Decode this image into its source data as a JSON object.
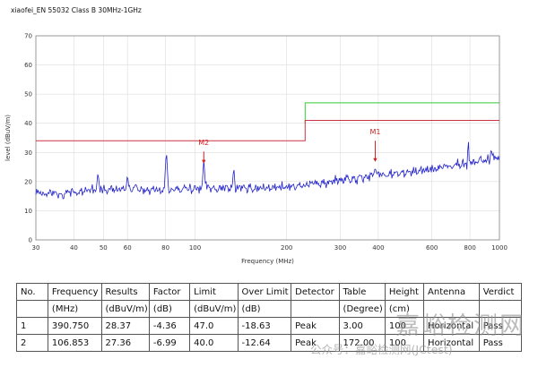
{
  "chart_data": {
    "type": "line",
    "title": "xiaofei_EN 55032 Class B 30MHz-1GHz",
    "xlabel": "Frequency (MHz)",
    "ylabel": "level (dBuV/m)",
    "xscale": "log",
    "xlim": [
      30,
      1000
    ],
    "ylim": [
      0,
      70
    ],
    "xticks": [
      30,
      40,
      50,
      60,
      80,
      100,
      200,
      300,
      400,
      600,
      800,
      1000
    ],
    "yticks": [
      0,
      10,
      20,
      30,
      40,
      50,
      60,
      70
    ],
    "grid": true,
    "legend": "none",
    "colors": {
      "trace": "#2222cc",
      "grid": "#dcdcdc",
      "axis": "#808080",
      "marker": "#cc2222"
    },
    "series": [
      {
        "name": "measured-emission-trace",
        "color": "#2222cc",
        "noise": 1.5,
        "samples": 600,
        "keypoints": [
          [
            30,
            16
          ],
          [
            36,
            15.5
          ],
          [
            45,
            17
          ],
          [
            60,
            17.5
          ],
          [
            75,
            17
          ],
          [
            95,
            17.5
          ],
          [
            110,
            18
          ],
          [
            140,
            18
          ],
          [
            170,
            17.5
          ],
          [
            210,
            18.5
          ],
          [
            260,
            19.5
          ],
          [
            330,
            21
          ],
          [
            420,
            22.5
          ],
          [
            520,
            23.5
          ],
          [
            650,
            25
          ],
          [
            800,
            26.5
          ],
          [
            1000,
            28.5
          ]
        ],
        "spikes": [
          {
            "freq": 48,
            "level": 23.2,
            "width": 0.006
          },
          {
            "freq": 60,
            "level": 22.5,
            "width": 0.005
          },
          {
            "freq": 80.5,
            "level": 31.0,
            "width": 0.007
          },
          {
            "freq": 106.853,
            "level": 27.4,
            "width": 0.006
          },
          {
            "freq": 134,
            "level": 25.2,
            "width": 0.005
          },
          {
            "freq": 390.75,
            "level": 24.8,
            "width": 0.006
          },
          {
            "freq": 790,
            "level": 35.3,
            "width": 0.0035
          },
          {
            "freq": 940,
            "level": 31.5,
            "width": 0.004
          }
        ]
      },
      {
        "name": "limit-line",
        "color": "#33cc33",
        "points": [
          [
            230,
            40
          ],
          [
            230,
            47
          ],
          [
            1000,
            47
          ]
        ]
      },
      {
        "name": "margin-line",
        "color": "#cc3344",
        "points": [
          [
            30,
            34
          ],
          [
            230,
            34
          ],
          [
            230,
            41
          ],
          [
            1000,
            41
          ]
        ]
      }
    ],
    "markers": [
      {
        "label": "M1",
        "freq": 390.75,
        "label_level": 36.2,
        "arrow_top": 34.0,
        "arrow_bottom": 26.8
      },
      {
        "label": "M2",
        "freq": 106.853,
        "label_level": 32.6,
        "arrow_top": 30.3,
        "arrow_bottom": 26.2
      }
    ]
  },
  "table": {
    "headers": [
      {
        "label": "No.",
        "unit": ""
      },
      {
        "label": "Frequency",
        "unit": "(MHz)"
      },
      {
        "label": "Results",
        "unit": "(dBuV/m)"
      },
      {
        "label": "Factor",
        "unit": "(dB)"
      },
      {
        "label": "Limit",
        "unit": "(dBuV/m)"
      },
      {
        "label": "Over Limit",
        "unit": "(dB)"
      },
      {
        "label": "Detector",
        "unit": ""
      },
      {
        "label": "Table",
        "unit": "(Degree)"
      },
      {
        "label": "Height",
        "unit": "(cm)"
      },
      {
        "label": "Antenna",
        "unit": ""
      },
      {
        "label": "Verdict",
        "unit": ""
      }
    ],
    "rows": [
      {
        "cells": [
          "1",
          "390.750",
          "28.37",
          "-4.36",
          "47.0",
          "-18.63",
          "Peak",
          "3.00",
          "100",
          "Horizontal",
          "Pass"
        ]
      },
      {
        "cells": [
          "2",
          "106.853",
          "27.36",
          "-6.99",
          "40.0",
          "-12.64",
          "Peak",
          "172.00",
          "100",
          "Horizontal",
          "Pass"
        ]
      }
    ]
  },
  "watermark": {
    "line1": "嘉峪检测网",
    "line2": "公众号：嘉峪检测网(JCtest)"
  }
}
